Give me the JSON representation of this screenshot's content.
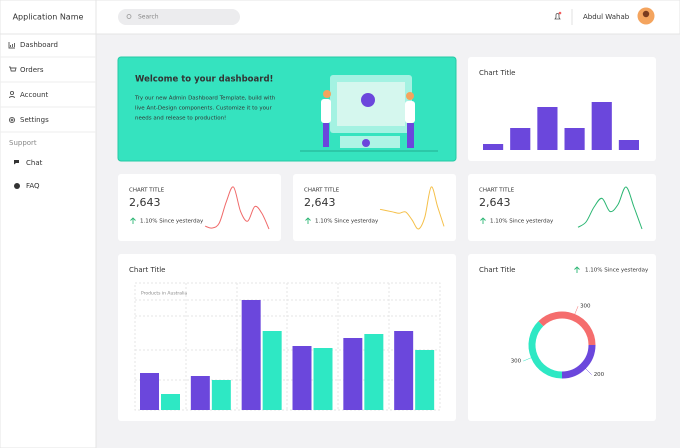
{
  "sidebar": {
    "app_name": "Application Name",
    "menu": [
      "Dashboard",
      "Orders",
      "Account",
      "Settings"
    ],
    "section": "Support",
    "support_menu": [
      "Chat",
      "FAQ"
    ]
  },
  "header": {
    "search_placeholder": "Search",
    "user_name": "Abdul Wahab"
  },
  "welcome": {
    "title": "Welcome to your dashboard!",
    "text_lines": [
      "Try our new Admin Dashboard Template, build with",
      "live Ant-Design components. Customize it to your",
      "needs and release to production!"
    ]
  },
  "top_chart": {
    "type": "bar",
    "title": "Chart Title",
    "values": [
      6,
      22,
      43,
      22,
      48,
      10
    ],
    "color": "#6b47dc"
  },
  "stats": [
    {
      "label": "CHART TITLE",
      "value": "2,643",
      "change": "1.10% Since yesterday",
      "chart": {
        "type": "line",
        "color": "#f06a6a",
        "values": [
          5,
          3,
          8,
          30,
          45,
          20,
          10,
          25,
          18,
          2
        ]
      }
    },
    {
      "label": "CHART TITLE",
      "value": "2,643",
      "change": "1.10% Since yesterday",
      "chart": {
        "type": "line",
        "color": "#f5c04a",
        "values": [
          18,
          17,
          16,
          15,
          16,
          10,
          3,
          12,
          35,
          20,
          5
        ]
      }
    },
    {
      "label": "CHART TITLE",
      "value": "2,643",
      "change": "1.10% Since yesterday",
      "chart": {
        "type": "line",
        "color": "#2bb673",
        "values": [
          2,
          8,
          25,
          35,
          20,
          28,
          48,
          25,
          0
        ]
      }
    }
  ],
  "bar_chart": {
    "type": "bar",
    "title": "Chart Title",
    "subtitle": "Products in Australia",
    "series": [
      {
        "color": "#6b47dc",
        "values": [
          37,
          34,
          110,
          64,
          72,
          79
        ]
      },
      {
        "color": "#2ee8c4",
        "values": [
          16,
          30,
          79,
          62,
          76,
          60
        ]
      }
    ]
  },
  "donut": {
    "type": "pie",
    "title": "Chart Title",
    "change": "1.10% Since yesterday",
    "values": [
      300,
      200,
      300
    ],
    "colors": [
      "#f56d6d",
      "#6b47dc",
      "#2ee8c4"
    ]
  }
}
